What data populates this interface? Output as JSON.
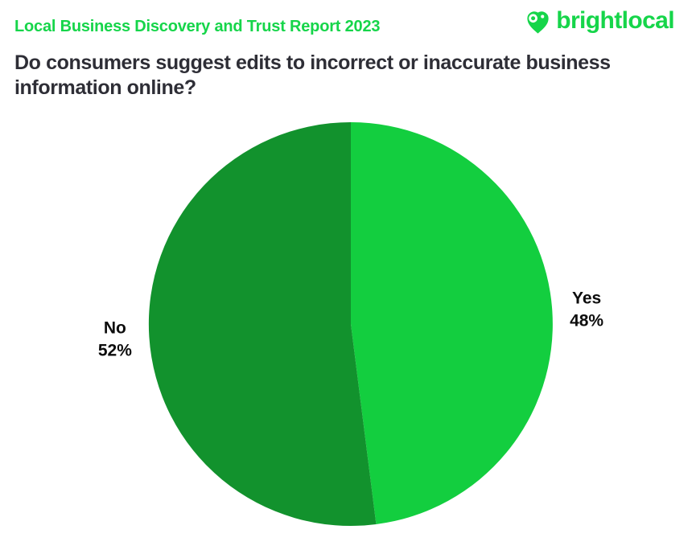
{
  "header": {
    "report_label": "Local Business Discovery and Trust Report 2023",
    "brand": "brightlocal"
  },
  "colors": {
    "brand_green": "#16D54A",
    "title_text": "#2E2E36",
    "label_text": "#0D0D0D",
    "background": "#FFFFFF",
    "yes_slice": "#13CE3F",
    "no_slice": "#12922D"
  },
  "chart_data": {
    "type": "pie",
    "title": "Do consumers suggest edits to incorrect or inaccurate business information online?",
    "categories": [
      "Yes",
      "No"
    ],
    "values": [
      48,
      52
    ],
    "slices": [
      {
        "label": "Yes",
        "value": 48,
        "display": "48%",
        "color": "#13CE3F"
      },
      {
        "label": "No",
        "value": 52,
        "display": "52%",
        "color": "#12922D"
      }
    ],
    "start_angle_deg": 0,
    "direction": "clockwise",
    "legend": "none",
    "data_labels": "outside"
  }
}
